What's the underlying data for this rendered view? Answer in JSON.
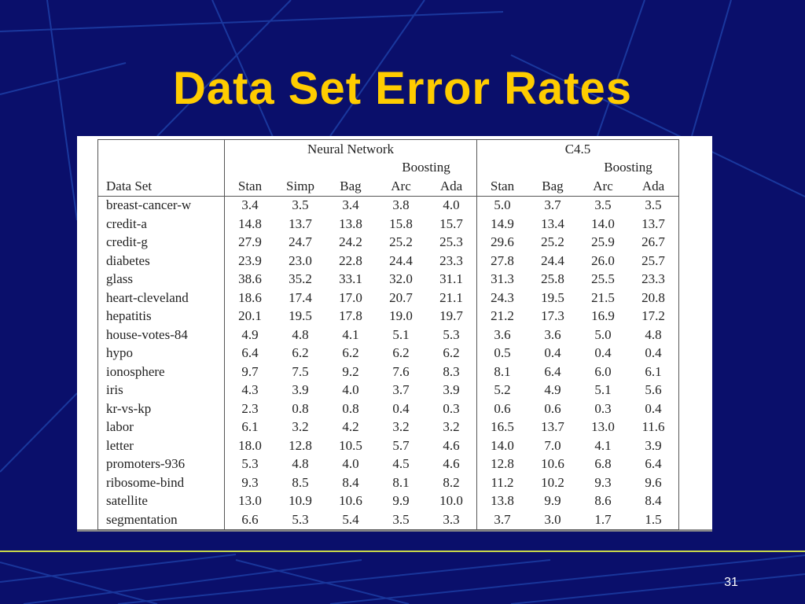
{
  "slide": {
    "title": "Data Set Error Rates",
    "page_number": "31"
  },
  "table": {
    "group_headers": {
      "neural_network": "Neural Network",
      "c45": "C4.5"
    },
    "boosting_label": "Boosting",
    "column_headers": [
      "Data Set",
      "Stan",
      "Simp",
      "Bag",
      "Arc",
      "Ada",
      "Stan",
      "Bag",
      "Arc",
      "Ada"
    ],
    "rows": [
      [
        "breast-cancer-w",
        "3.4",
        "3.5",
        "3.4",
        "3.8",
        "4.0",
        "5.0",
        "3.7",
        "3.5",
        "3.5"
      ],
      [
        "credit-a",
        "14.8",
        "13.7",
        "13.8",
        "15.8",
        "15.7",
        "14.9",
        "13.4",
        "14.0",
        "13.7"
      ],
      [
        "credit-g",
        "27.9",
        "24.7",
        "24.2",
        "25.2",
        "25.3",
        "29.6",
        "25.2",
        "25.9",
        "26.7"
      ],
      [
        "diabetes",
        "23.9",
        "23.0",
        "22.8",
        "24.4",
        "23.3",
        "27.8",
        "24.4",
        "26.0",
        "25.7"
      ],
      [
        "glass",
        "38.6",
        "35.2",
        "33.1",
        "32.0",
        "31.1",
        "31.3",
        "25.8",
        "25.5",
        "23.3"
      ],
      [
        "heart-cleveland",
        "18.6",
        "17.4",
        "17.0",
        "20.7",
        "21.1",
        "24.3",
        "19.5",
        "21.5",
        "20.8"
      ],
      [
        "hepatitis",
        "20.1",
        "19.5",
        "17.8",
        "19.0",
        "19.7",
        "21.2",
        "17.3",
        "16.9",
        "17.2"
      ],
      [
        "house-votes-84",
        "4.9",
        "4.8",
        "4.1",
        "5.1",
        "5.3",
        "3.6",
        "3.6",
        "5.0",
        "4.8"
      ],
      [
        "hypo",
        "6.4",
        "6.2",
        "6.2",
        "6.2",
        "6.2",
        "0.5",
        "0.4",
        "0.4",
        "0.4"
      ],
      [
        "ionosphere",
        "9.7",
        "7.5",
        "9.2",
        "7.6",
        "8.3",
        "8.1",
        "6.4",
        "6.0",
        "6.1"
      ],
      [
        "iris",
        "4.3",
        "3.9",
        "4.0",
        "3.7",
        "3.9",
        "5.2",
        "4.9",
        "5.1",
        "5.6"
      ],
      [
        "kr-vs-kp",
        "2.3",
        "0.8",
        "0.8",
        "0.4",
        "0.3",
        "0.6",
        "0.6",
        "0.3",
        "0.4"
      ],
      [
        "labor",
        "6.1",
        "3.2",
        "4.2",
        "3.2",
        "3.2",
        "16.5",
        "13.7",
        "13.0",
        "11.6"
      ],
      [
        "letter",
        "18.0",
        "12.8",
        "10.5",
        "5.7",
        "4.6",
        "14.0",
        "7.0",
        "4.1",
        "3.9"
      ],
      [
        "promoters-936",
        "5.3",
        "4.8",
        "4.0",
        "4.5",
        "4.6",
        "12.8",
        "10.6",
        "6.8",
        "6.4"
      ],
      [
        "ribosome-bind",
        "9.3",
        "8.5",
        "8.4",
        "8.1",
        "8.2",
        "11.2",
        "10.2",
        "9.3",
        "9.6"
      ],
      [
        "satellite",
        "13.0",
        "10.9",
        "10.6",
        "9.9",
        "10.0",
        "13.8",
        "9.9",
        "8.6",
        "8.4"
      ],
      [
        "segmentation",
        "6.6",
        "5.3",
        "5.4",
        "3.5",
        "3.3",
        "3.7",
        "3.0",
        "1.7",
        "1.5"
      ]
    ]
  },
  "colors": {
    "background": "#0a0f6b",
    "title": "#ffcc00",
    "accent_line": "#c8d84a"
  }
}
